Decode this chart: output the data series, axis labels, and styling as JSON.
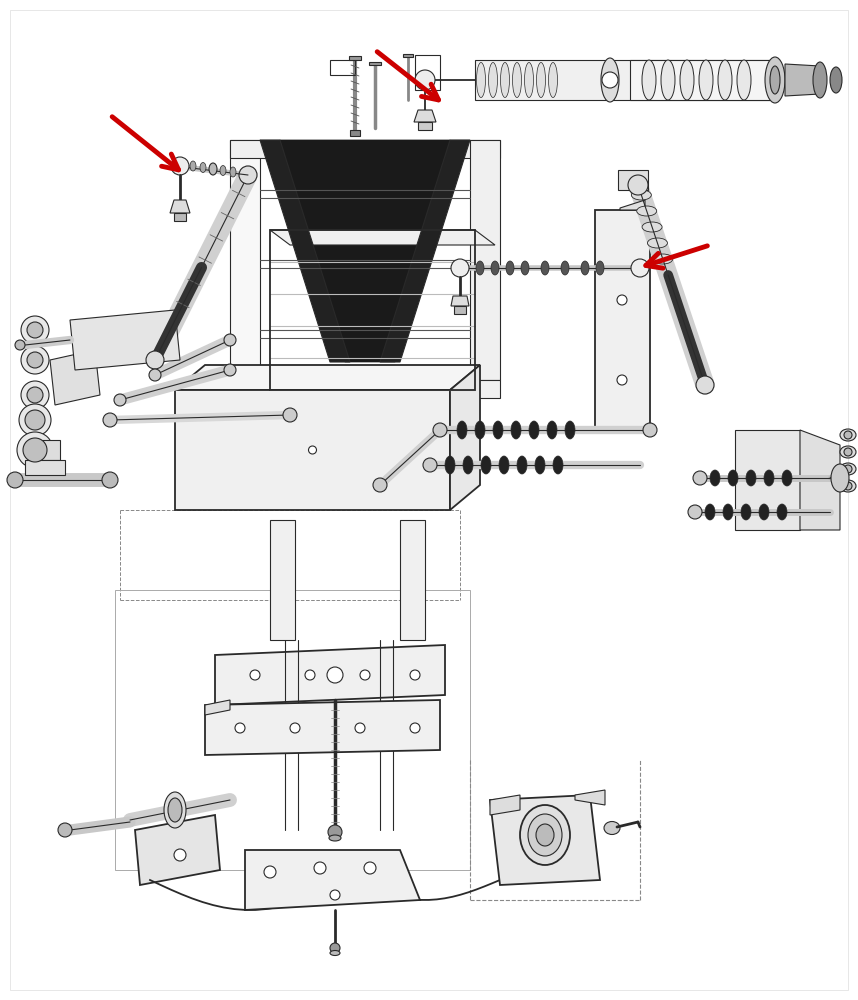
{
  "background_color": "#ffffff",
  "line_color": "#2a2a2a",
  "arrow_color": "#cc0000",
  "fig_width": 8.58,
  "fig_height": 10.0,
  "dpi": 100,
  "border_color": "#cccccc"
}
